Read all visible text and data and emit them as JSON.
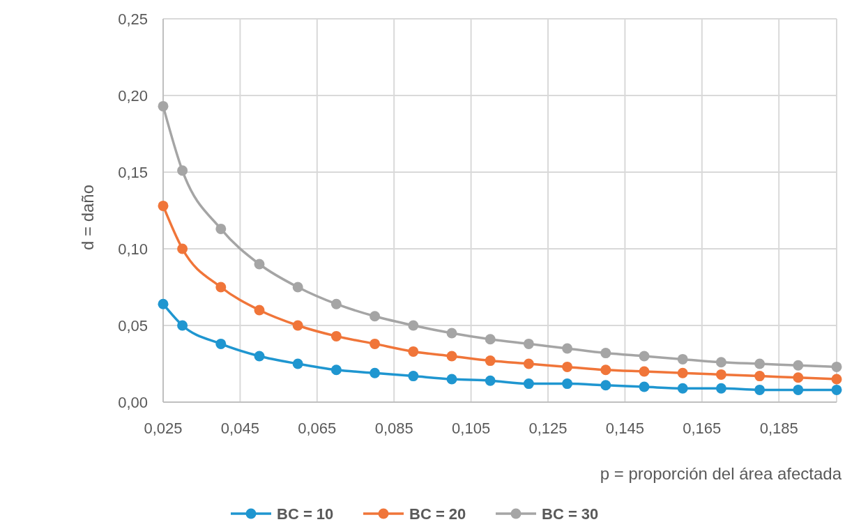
{
  "chart_data": {
    "type": "line",
    "xlabel": "p = proporción del área afectada",
    "ylabel": "d = daño",
    "x": [
      0.025,
      0.03,
      0.04,
      0.05,
      0.06,
      0.07,
      0.08,
      0.09,
      0.1,
      0.11,
      0.12,
      0.13,
      0.14,
      0.15,
      0.16,
      0.17,
      0.18,
      0.19,
      0.2
    ],
    "series": [
      {
        "name": "BC = 10",
        "color": "#1f96d0",
        "values": [
          0.064,
          0.05,
          0.038,
          0.03,
          0.025,
          0.021,
          0.019,
          0.017,
          0.015,
          0.014,
          0.012,
          0.012,
          0.011,
          0.01,
          0.009,
          0.009,
          0.008,
          0.008,
          0.008
        ]
      },
      {
        "name": "BC = 20",
        "color": "#f07539",
        "values": [
          0.128,
          0.1,
          0.075,
          0.06,
          0.05,
          0.043,
          0.038,
          0.033,
          0.03,
          0.027,
          0.025,
          0.023,
          0.021,
          0.02,
          0.019,
          0.018,
          0.017,
          0.016,
          0.015
        ]
      },
      {
        "name": "BC = 30",
        "color": "#a5a5a5",
        "values": [
          0.193,
          0.151,
          0.113,
          0.09,
          0.075,
          0.064,
          0.056,
          0.05,
          0.045,
          0.041,
          0.038,
          0.035,
          0.032,
          0.03,
          0.028,
          0.026,
          0.025,
          0.024,
          0.023
        ]
      }
    ],
    "xlim": [
      0.025,
      0.2
    ],
    "xticks": [
      {
        "value": 0.025,
        "label": "0,025"
      },
      {
        "value": 0.045,
        "label": "0,045"
      },
      {
        "value": 0.065,
        "label": "0,065"
      },
      {
        "value": 0.085,
        "label": "0,085"
      },
      {
        "value": 0.105,
        "label": "0,105"
      },
      {
        "value": 0.125,
        "label": "0,125"
      },
      {
        "value": 0.145,
        "label": "0,145"
      },
      {
        "value": 0.165,
        "label": "0,165"
      },
      {
        "value": 0.185,
        "label": "0,185"
      }
    ],
    "ylim": [
      0,
      0.25
    ],
    "yticks": [
      {
        "value": 0,
        "label": "0,00"
      },
      {
        "value": 0.05,
        "label": "0,05"
      },
      {
        "value": 0.1,
        "label": "0,10"
      },
      {
        "value": 0.15,
        "label": "0,15"
      },
      {
        "value": 0.2,
        "label": "0,20"
      },
      {
        "value": 0.25,
        "label": "0,25"
      }
    ],
    "grid": true,
    "legend": "bottom",
    "marker": "circle",
    "line_style": "solid"
  }
}
